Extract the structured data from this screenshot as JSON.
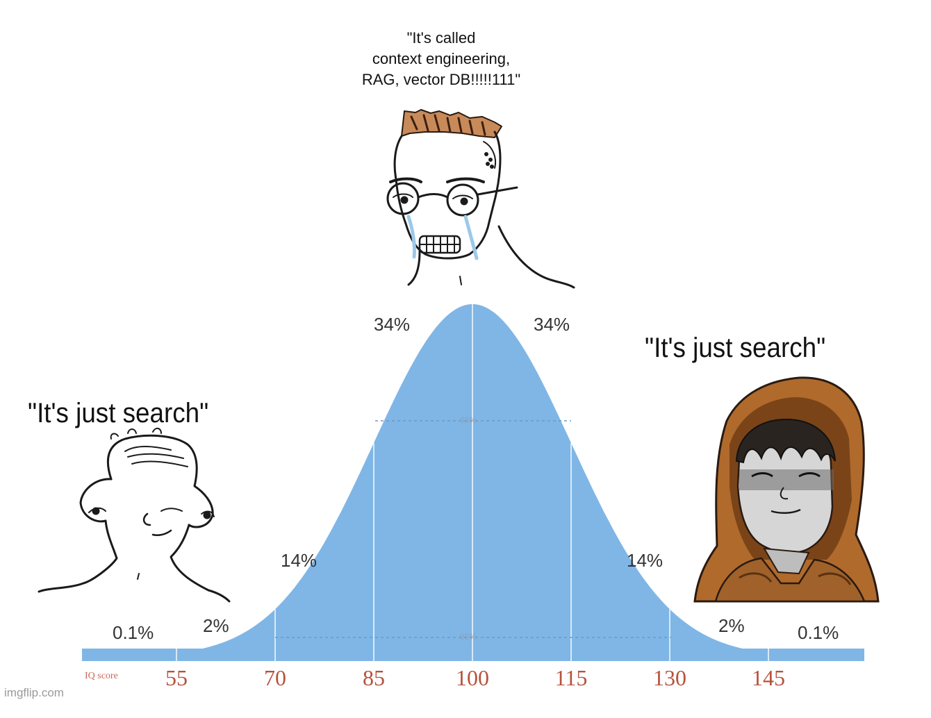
{
  "captions": {
    "middle": [
      "\"It's called",
      "context engineering,",
      "RAG, vector DB!!!!!111\""
    ],
    "left": "\"It's just search\"",
    "right": "\"It's just search\""
  },
  "chart_data": {
    "type": "area",
    "xlabel": "IQ score",
    "x_ticks": [
      "55",
      "70",
      "85",
      "100",
      "115",
      "130",
      "145"
    ],
    "region_percentages": {
      "far_left": "0.1%",
      "left_tail": "2%",
      "left_mid": "14%",
      "left_center": "34%",
      "right_center": "34%",
      "right_mid": "14%",
      "right_tail": "2%",
      "far_right": "0.1%"
    },
    "inner_labels": {
      "one_sigma": "68%",
      "two_sigma": "95%"
    },
    "curve": {
      "mean": 100,
      "sd": 15,
      "x_range": [
        47,
        157
      ]
    },
    "fill_color": "#7fb6e6"
  },
  "characters": {
    "left": "wojak-simple",
    "middle": "crying-glasses-nerd",
    "right": "hooded-monk"
  },
  "watermark": "imgflip.com"
}
